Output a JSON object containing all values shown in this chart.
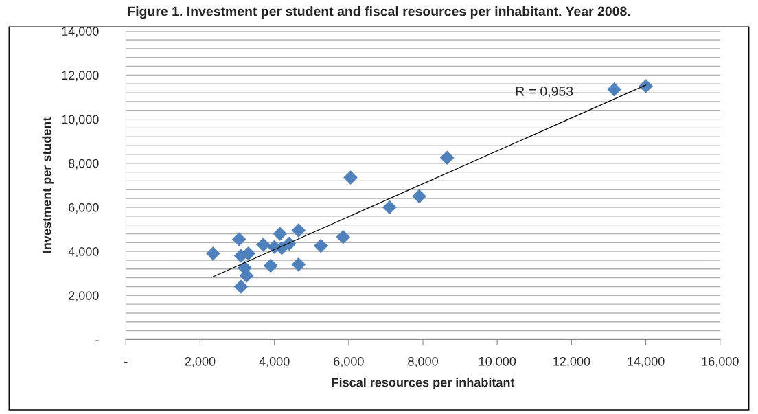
{
  "chart_data": {
    "type": "scatter",
    "title": "Figure 1. Investment per student and fiscal resources per inhabitant. Year 2008.",
    "xlabel": "Fiscal resources per inhabitant",
    "ylabel": "Investment per student",
    "series": [
      {
        "color": "#4f81bd",
        "marker": "diamond",
        "x": [
          2350,
          3050,
          3100,
          3300,
          3200,
          3250,
          3100,
          3700,
          4150,
          4000,
          4200,
          4400,
          3900,
          4650,
          4650,
          5250,
          5850,
          7100,
          7900,
          8650,
          6050,
          13150,
          14000
        ],
        "values": [
          3900,
          4550,
          3800,
          3900,
          3250,
          2900,
          2400,
          4300,
          4800,
          4200,
          4150,
          4350,
          3350,
          4950,
          3400,
          4250,
          4650,
          6000,
          6500,
          8250,
          7350,
          11350,
          11500
        ]
      },
      {
        "type": "line",
        "color": "#000000",
        "x": [
          2350,
          14000
        ],
        "values": [
          2850,
          11550
        ]
      }
    ],
    "annotations": [
      "R = 0,953"
    ],
    "xlim": [
      0,
      16000
    ],
    "xticks": [
      {
        "value": 0,
        "label": "-"
      },
      {
        "value": 2000,
        "label": "2,000"
      },
      {
        "value": 4000,
        "label": "4,000"
      },
      {
        "value": 6000,
        "label": "6,000"
      },
      {
        "value": 8000,
        "label": "8,000"
      },
      {
        "value": 10000,
        "label": "10,000"
      },
      {
        "value": 12000,
        "label": "12,000"
      },
      {
        "value": 14000,
        "label": "14,000"
      },
      {
        "value": 16000,
        "label": "16,000"
      }
    ],
    "ylim": [
      0,
      14000
    ],
    "yticks": [
      {
        "value": 0,
        "label": "-"
      },
      {
        "value": 400,
        "label": null
      },
      {
        "value": 800,
        "label": null
      },
      {
        "value": 1200,
        "label": null
      },
      {
        "value": 1600,
        "label": null
      },
      {
        "value": 2000,
        "label": "2,000"
      },
      {
        "value": 2400,
        "label": null
      },
      {
        "value": 2800,
        "label": null
      },
      {
        "value": 3200,
        "label": null
      },
      {
        "value": 3600,
        "label": null
      },
      {
        "value": 4000,
        "label": "4,000"
      },
      {
        "value": 4400,
        "label": null
      },
      {
        "value": 4800,
        "label": null
      },
      {
        "value": 5200,
        "label": null
      },
      {
        "value": 5600,
        "label": null
      },
      {
        "value": 6000,
        "label": "6,000"
      },
      {
        "value": 6400,
        "label": null
      },
      {
        "value": 6800,
        "label": null
      },
      {
        "value": 7200,
        "label": null
      },
      {
        "value": 7600,
        "label": null
      },
      {
        "value": 8000,
        "label": "8,000"
      },
      {
        "value": 8400,
        "label": null
      },
      {
        "value": 8800,
        "label": null
      },
      {
        "value": 9200,
        "label": null
      },
      {
        "value": 9600,
        "label": null
      },
      {
        "value": 10000,
        "label": "10,000"
      },
      {
        "value": 10400,
        "label": null
      },
      {
        "value": 10800,
        "label": null
      },
      {
        "value": 11200,
        "label": null
      },
      {
        "value": 11600,
        "label": null
      },
      {
        "value": 12000,
        "label": "12,000"
      },
      {
        "value": 12400,
        "label": null
      },
      {
        "value": 12800,
        "label": null
      },
      {
        "value": 13200,
        "label": null
      },
      {
        "value": 13600,
        "label": null
      },
      {
        "value": 14000,
        "label": "14,000"
      }
    ],
    "grid": "y"
  }
}
